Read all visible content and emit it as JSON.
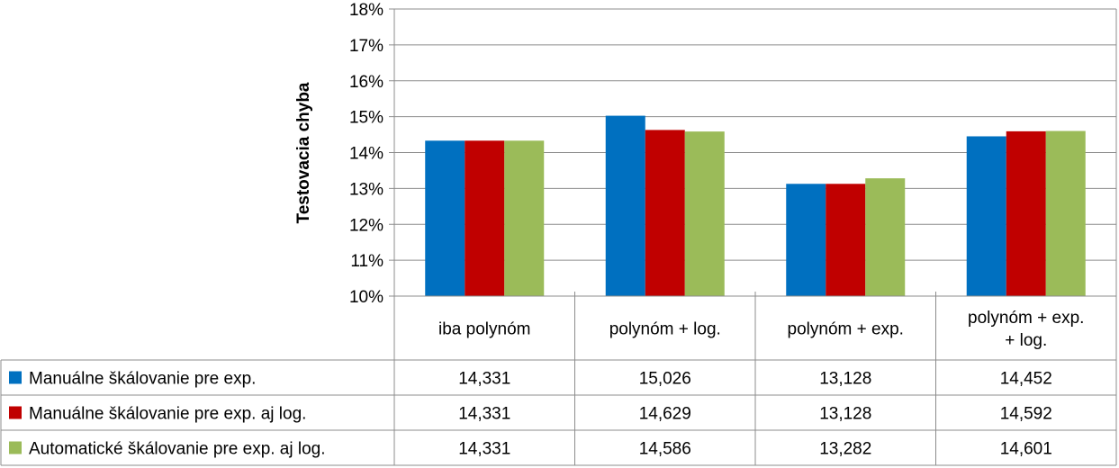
{
  "chart_data": {
    "type": "bar",
    "ylabel": "Testovacia chyba",
    "ylim": [
      10,
      18
    ],
    "yticks": [
      "10%",
      "11%",
      "12%",
      "13%",
      "14%",
      "15%",
      "16%",
      "17%",
      "18%"
    ],
    "grid": true,
    "legend": "data-table",
    "categories": [
      [
        "iba polynóm"
      ],
      [
        "polynóm + log."
      ],
      [
        "polynóm + exp."
      ],
      [
        "polynóm + exp.",
        "+ log."
      ]
    ],
    "series": [
      {
        "name": "Manuálne škálovanie pre exp.",
        "color": "#0070c0",
        "values": [
          14.331,
          15.026,
          13.128,
          14.452
        ],
        "labels": [
          "14,331",
          "15,026",
          "13,128",
          "14,452"
        ]
      },
      {
        "name": "Manuálne škálovanie pre exp. aj log.",
        "color": "#c00000",
        "values": [
          14.331,
          14.629,
          13.128,
          14.592
        ],
        "labels": [
          "14,331",
          "14,629",
          "13,128",
          "14,592"
        ]
      },
      {
        "name": "Automatické škálovanie pre exp. aj log.",
        "color": "#9bbb59",
        "values": [
          14.331,
          14.586,
          13.282,
          14.601
        ],
        "labels": [
          "14,331",
          "14,586",
          "13,282",
          "14,601"
        ]
      }
    ]
  }
}
